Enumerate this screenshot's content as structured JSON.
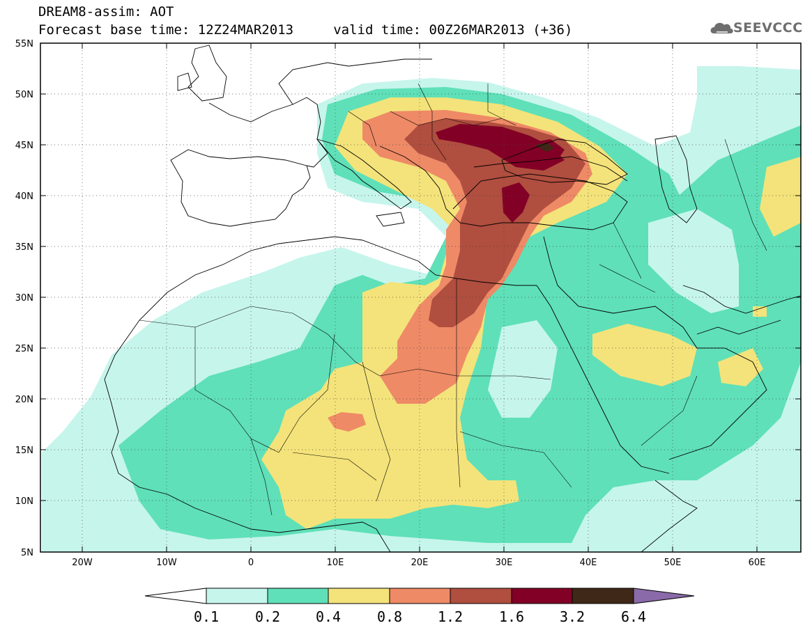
{
  "header": {
    "line1": "DREAM8-assim: AOT",
    "line2": "Forecast base time: 12Z24MAR2013     valid time: 00Z26MAR2013 (+36)"
  },
  "logo": {
    "text": "SEEVCCC",
    "icon": "cloud-icon"
  },
  "map": {
    "lon_range": [
      -25,
      65
    ],
    "lat_range": [
      5,
      55
    ],
    "lat_ticks": [
      "55N",
      "50N",
      "45N",
      "40N",
      "35N",
      "30N",
      "25N",
      "20N",
      "15N",
      "10N",
      "5N"
    ],
    "lon_ticks": [
      "20W",
      "10W",
      "0",
      "10E",
      "20E",
      "30E",
      "40E",
      "50E",
      "60E"
    ],
    "grid": "dotted"
  },
  "colorbar": {
    "labels": [
      "0.1",
      "0.2",
      "0.4",
      "0.8",
      "1.2",
      "1.6",
      "3.2",
      "6.4"
    ],
    "colors": [
      "#c6f5ec",
      "#5fe0b8",
      "#f4e37a",
      "#ee8a66",
      "#b04e3f",
      "#820026",
      "#3f2817",
      "#8a6aa8"
    ]
  }
}
